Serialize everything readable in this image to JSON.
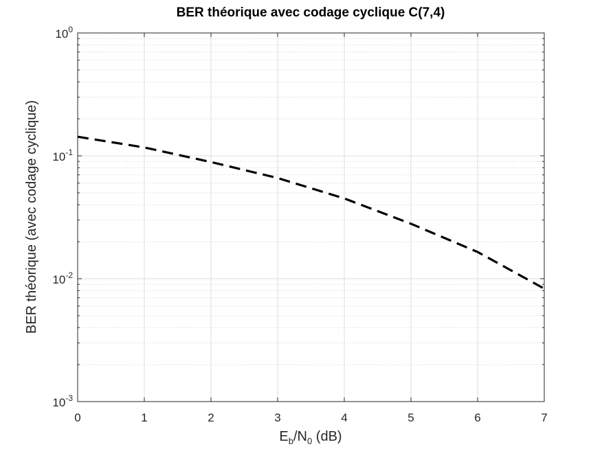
{
  "chart_data": {
    "type": "line",
    "title": "BER théorique avec codage cyclique C(7,4)",
    "xlabel": {
      "E": "E",
      "b": "b",
      "slash": "/N",
      "zero": "0",
      "unit": " (dB)"
    },
    "ylabel": "BER théorique (avec codage cyclique)",
    "xlim": [
      0,
      7
    ],
    "ylim": [
      0.001,
      1
    ],
    "yscale": "log",
    "grid": true,
    "minor_grid": true,
    "x_ticks": [
      0,
      1,
      2,
      3,
      4,
      5,
      6,
      7
    ],
    "x_tick_labels": [
      "0",
      "1",
      "2",
      "3",
      "4",
      "5",
      "6",
      "7"
    ],
    "y_ticks": [
      {
        "value": 1,
        "base": "10",
        "exp": "0"
      },
      {
        "value": 0.1,
        "base": "10",
        "exp": "-1"
      },
      {
        "value": 0.01,
        "base": "10",
        "exp": "-2"
      },
      {
        "value": 0.001,
        "base": "10",
        "exp": "-3"
      }
    ],
    "series": [
      {
        "line_style": "dashed",
        "color": "#000000",
        "x": [
          0,
          1,
          2,
          3,
          4,
          5,
          6,
          7
        ],
        "y": [
          0.143,
          0.117,
          0.089,
          0.066,
          0.045,
          0.028,
          0.0165,
          0.0083
        ]
      }
    ]
  }
}
